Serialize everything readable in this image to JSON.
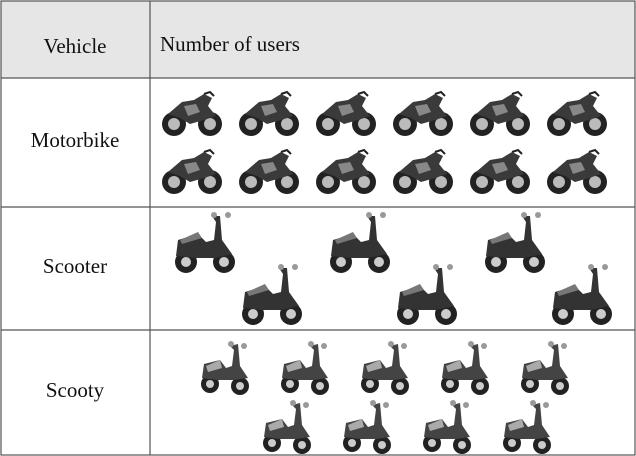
{
  "table": {
    "header": [
      "Vehicle",
      "Number of users"
    ],
    "rows": [
      {
        "vehicle": "Motorbike",
        "count": 12
      },
      {
        "vehicle": "Scooter",
        "count": 6
      },
      {
        "vehicle": "Scooty",
        "count": 9
      }
    ]
  }
}
